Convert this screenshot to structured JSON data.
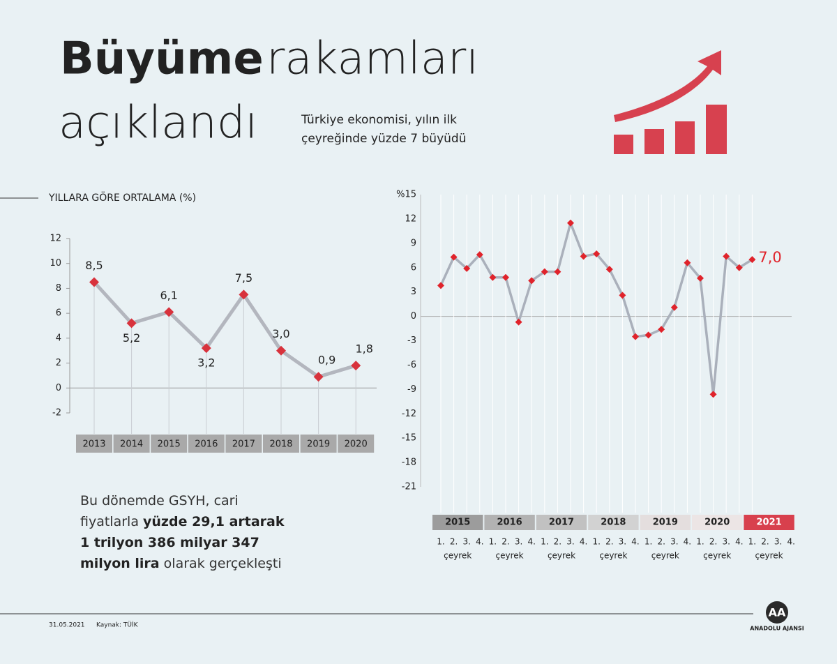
{
  "header": {
    "title_bold": "Büyüme",
    "title_light": "rakamları",
    "title_line2": "açıklandı",
    "subtitle_line1": "Türkiye ekonomisi, yılın ilk",
    "subtitle_line2": "çeyreğinde yüzde 7 büyüdü"
  },
  "chart_data": [
    {
      "type": "line",
      "title": "YILLARA GÖRE ORTALAMA (%)",
      "categories": [
        "2013",
        "2014",
        "2015",
        "2016",
        "2017",
        "2018",
        "2019",
        "2020"
      ],
      "values": [
        8.5,
        5.2,
        6.1,
        3.2,
        7.5,
        3.0,
        0.9,
        1.8
      ],
      "value_labels": [
        "8,5",
        "5,2",
        "6,1",
        "3,2",
        "7,5",
        "3,0",
        "0,9",
        "1,8"
      ],
      "line_color": "#b3b6be",
      "marker_color": "#d8323c",
      "category_color": "#a9a9a9",
      "ylim": [
        -2,
        12
      ],
      "yticks": [
        -2,
        0,
        2,
        4,
        6,
        8,
        10,
        12
      ]
    },
    {
      "type": "line",
      "years": [
        "2015",
        "2016",
        "2017",
        "2018",
        "2019",
        "2020",
        "2021"
      ],
      "year_colors": [
        "#9c9c9c",
        "#b2b2b2",
        "#c1c1c1",
        "#d2d2d2",
        "#e4dede",
        "#ece5e5",
        "#d8404d"
      ],
      "year_text_colors": [
        "#222222",
        "#222222",
        "#222222",
        "#222222",
        "#222222",
        "#222222",
        "#ffffff"
      ],
      "quarters": [
        "1.",
        "2.",
        "3.",
        "4."
      ],
      "quarter_word": "çeyrek",
      "values": [
        3.8,
        7.3,
        5.9,
        7.6,
        4.8,
        4.8,
        -0.7,
        4.4,
        5.5,
        5.5,
        11.5,
        7.4,
        7.7,
        5.8,
        2.6,
        -2.5,
        -2.3,
        -1.6,
        1.1,
        6.6,
        4.7,
        -9.6,
        7.4,
        6.0,
        7.0
      ],
      "value_labels": [
        null,
        null,
        null,
        null,
        null,
        null,
        null,
        null,
        null,
        null,
        null,
        null,
        null,
        null,
        null,
        null,
        null,
        null,
        null,
        null,
        null,
        null,
        null,
        null,
        "7,0"
      ],
      "line_color": "#aab0bb",
      "marker_color": "#e0232b",
      "ylim": [
        -21,
        15
      ],
      "yticks": [
        -21,
        -18,
        -15,
        -12,
        -9,
        -6,
        -3,
        0,
        3,
        6,
        9,
        12,
        {
          "value": 15,
          "label": "%15"
        }
      ]
    }
  ],
  "note": {
    "before": "Bu dönemde GSYH, cari fiyatlarla",
    "bold": "yüzde 29,1 artarak 1 trilyon 386 milyar 347 milyon lira",
    "after": "olarak gerçekleşti"
  },
  "footer": {
    "date": "31.05.2021",
    "source": "Kaynak: TÜİK",
    "logo": "AA",
    "agency": "ANADOLU AJANSI"
  }
}
